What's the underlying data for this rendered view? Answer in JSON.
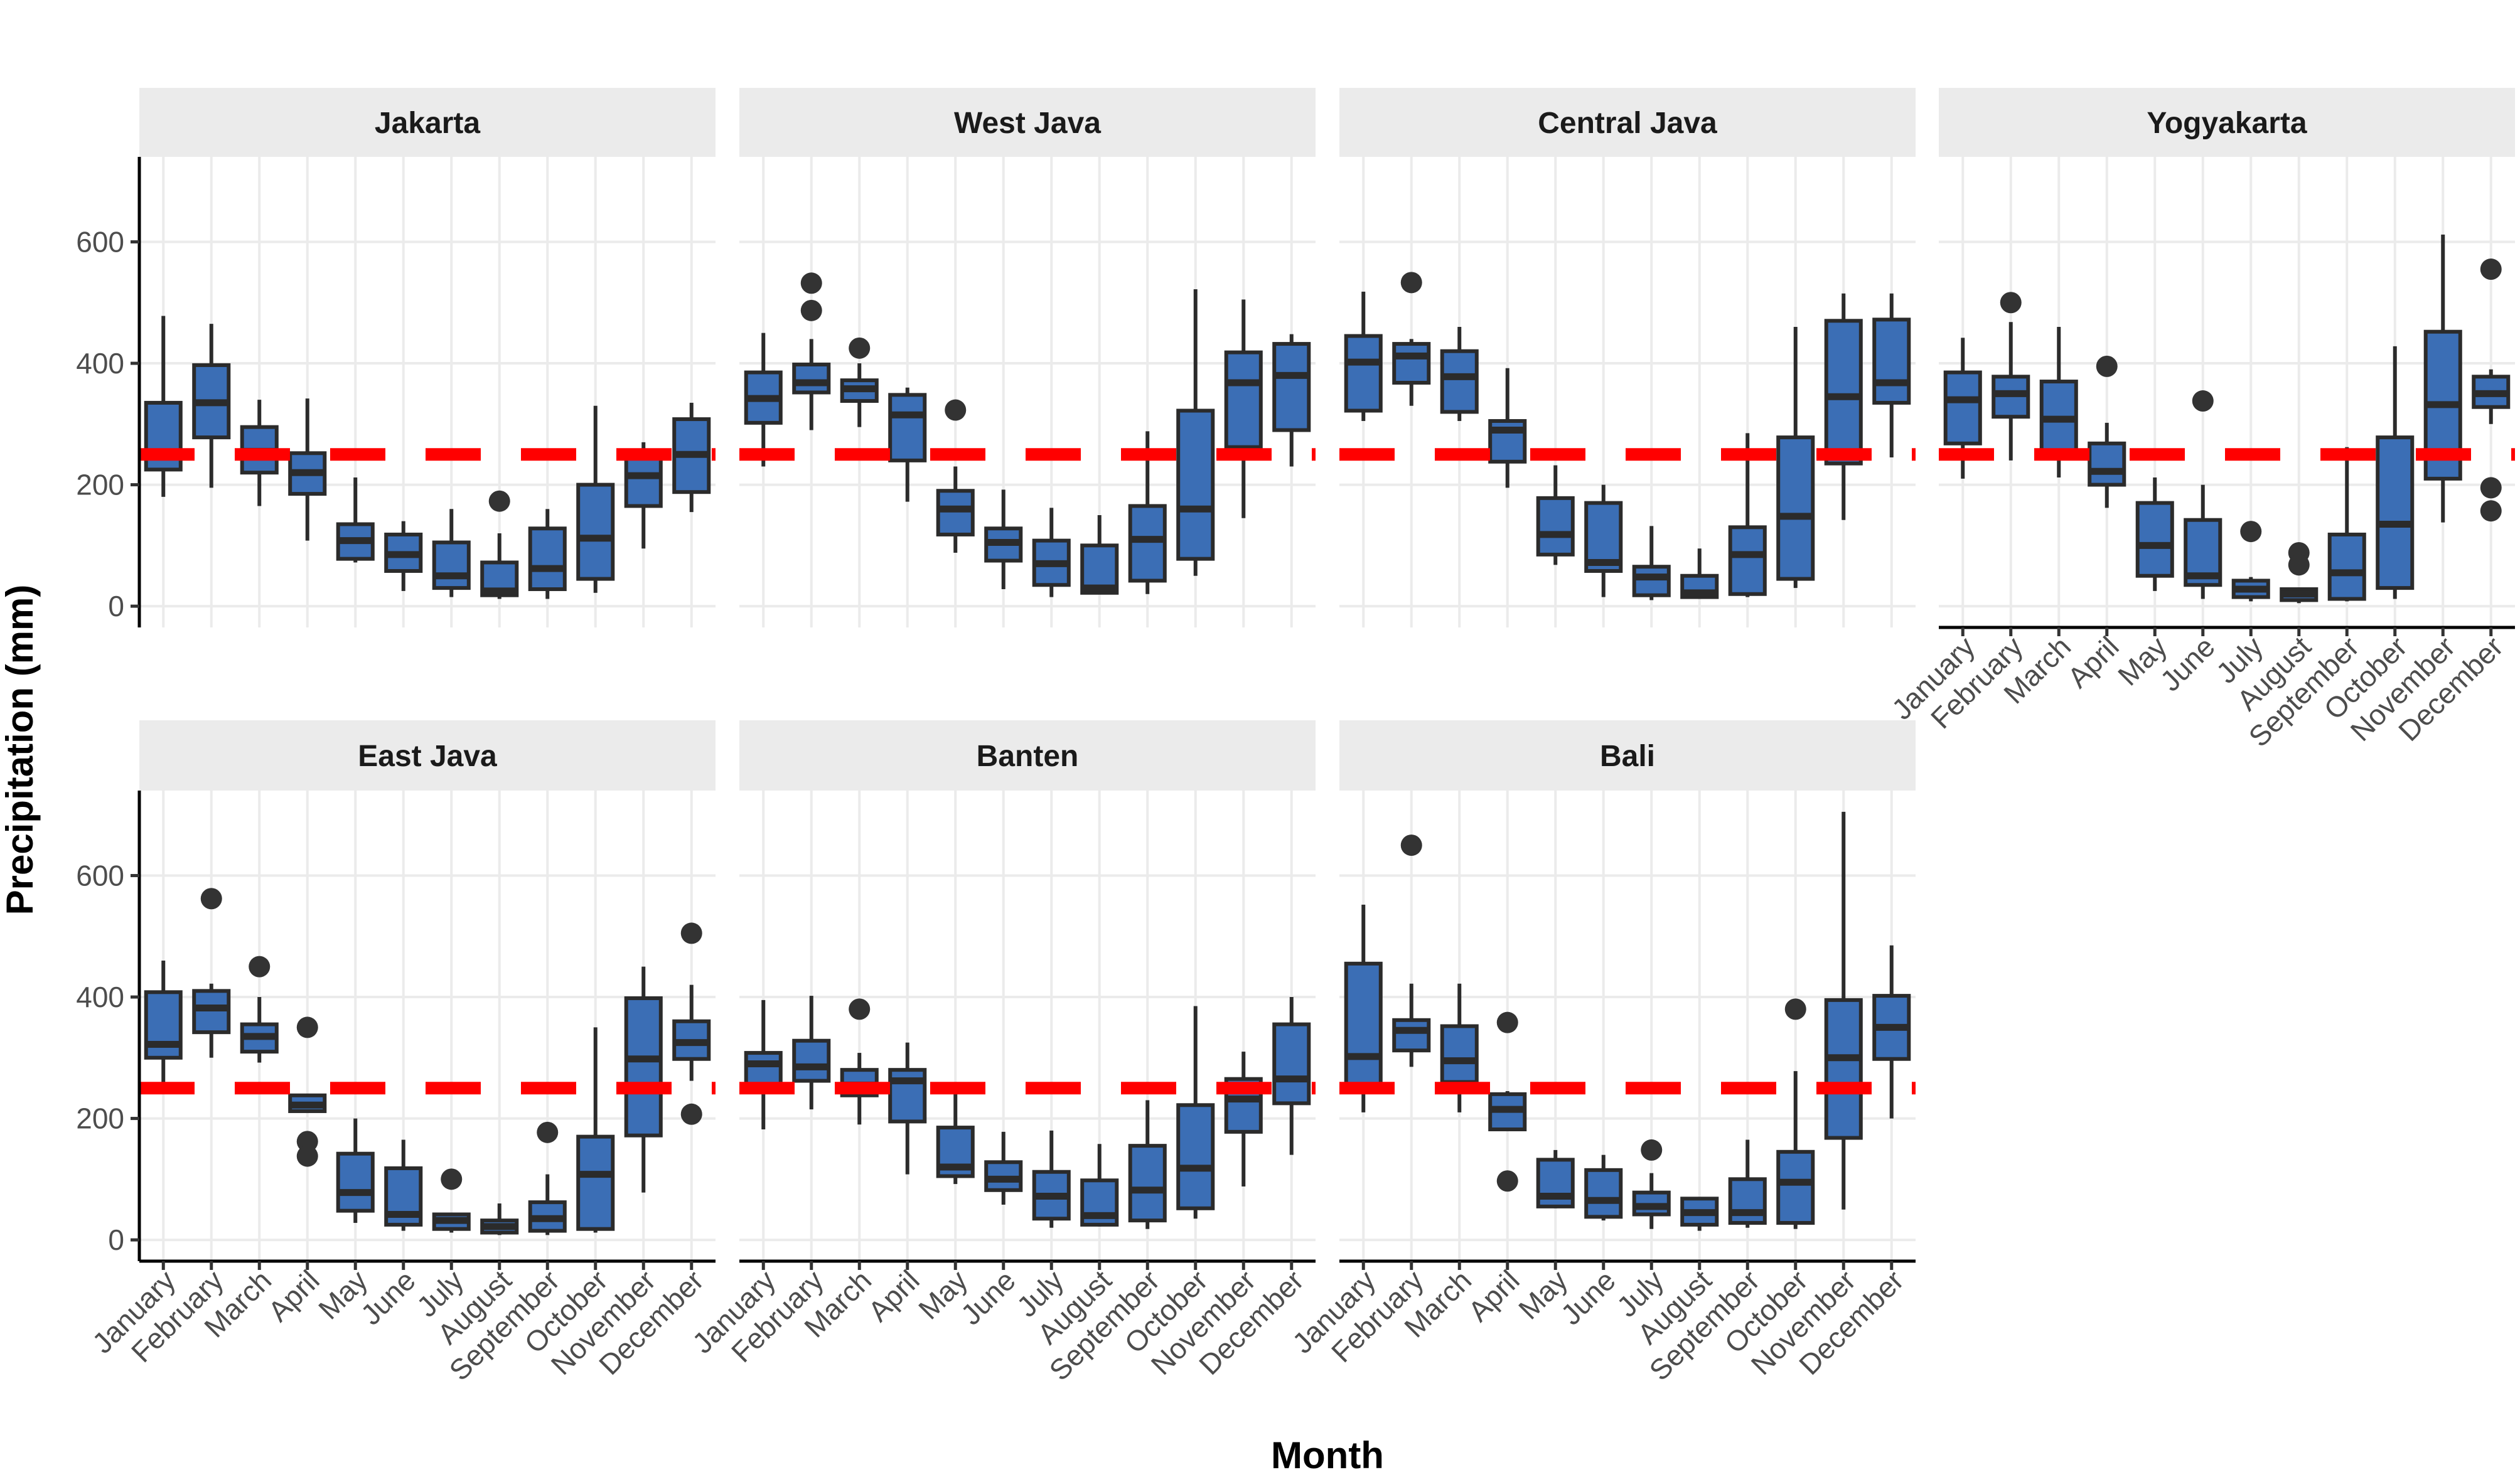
{
  "figure": {
    "xlabel": "Month",
    "ylabel": "Precipitation (mm)",
    "colors": {
      "box_fill": "#3B6EB5",
      "box_stroke": "#2b2b2b",
      "outlier": "#333333",
      "threshold_line": "#FF0000",
      "strip_background": "#EBEBEB",
      "grid": "#EBEBEB"
    }
  },
  "chart_data": {
    "type": "boxplot",
    "months": [
      "January",
      "February",
      "March",
      "April",
      "May",
      "June",
      "July",
      "August",
      "September",
      "October",
      "November",
      "December"
    ],
    "ylim": [
      -35,
      740
    ],
    "yticks": [
      0,
      200,
      400,
      600
    ],
    "threshold": 250,
    "grid": "on",
    "panels": [
      {
        "name": "Jakarta",
        "boxes": [
          {
            "lw": 180,
            "q1": 225,
            "med": 252,
            "q3": 335,
            "uw": 478,
            "out": []
          },
          {
            "lw": 195,
            "q1": 278,
            "med": 335,
            "q3": 397,
            "uw": 465,
            "out": []
          },
          {
            "lw": 165,
            "q1": 220,
            "med": 255,
            "q3": 295,
            "uw": 340,
            "out": []
          },
          {
            "lw": 108,
            "q1": 185,
            "med": 220,
            "q3": 252,
            "uw": 342,
            "out": []
          },
          {
            "lw": 72,
            "q1": 78,
            "med": 108,
            "q3": 135,
            "uw": 212,
            "out": []
          },
          {
            "lw": 25,
            "q1": 58,
            "med": 85,
            "q3": 118,
            "uw": 140,
            "out": []
          },
          {
            "lw": 15,
            "q1": 30,
            "med": 50,
            "q3": 105,
            "uw": 160,
            "out": []
          },
          {
            "lw": 12,
            "q1": 18,
            "med": 25,
            "q3": 72,
            "uw": 120,
            "out": [
              173
            ]
          },
          {
            "lw": 12,
            "q1": 28,
            "med": 62,
            "q3": 128,
            "uw": 160,
            "out": []
          },
          {
            "lw": 22,
            "q1": 45,
            "med": 112,
            "q3": 200,
            "uw": 330,
            "out": []
          },
          {
            "lw": 95,
            "q1": 165,
            "med": 215,
            "q3": 250,
            "uw": 270,
            "out": []
          },
          {
            "lw": 155,
            "q1": 188,
            "med": 250,
            "q3": 308,
            "uw": 335,
            "out": []
          }
        ]
      },
      {
        "name": "West Java",
        "boxes": [
          {
            "lw": 230,
            "q1": 302,
            "med": 342,
            "q3": 385,
            "uw": 450,
            "out": []
          },
          {
            "lw": 290,
            "q1": 352,
            "med": 368,
            "q3": 398,
            "uw": 440,
            "out": [
              532,
              487
            ]
          },
          {
            "lw": 295,
            "q1": 338,
            "med": 358,
            "q3": 372,
            "uw": 400,
            "out": [
              425
            ]
          },
          {
            "lw": 172,
            "q1": 240,
            "med": 315,
            "q3": 348,
            "uw": 360,
            "out": []
          },
          {
            "lw": 88,
            "q1": 118,
            "med": 160,
            "q3": 190,
            "uw": 230,
            "out": [
              323
            ]
          },
          {
            "lw": 28,
            "q1": 75,
            "med": 105,
            "q3": 128,
            "uw": 192,
            "out": []
          },
          {
            "lw": 15,
            "q1": 35,
            "med": 70,
            "q3": 108,
            "uw": 162,
            "out": []
          },
          {
            "lw": 20,
            "q1": 22,
            "med": 30,
            "q3": 100,
            "uw": 150,
            "out": []
          },
          {
            "lw": 20,
            "q1": 42,
            "med": 110,
            "q3": 165,
            "uw": 288,
            "out": []
          },
          {
            "lw": 50,
            "q1": 78,
            "med": 160,
            "q3": 322,
            "uw": 522,
            "out": []
          },
          {
            "lw": 145,
            "q1": 262,
            "med": 368,
            "q3": 418,
            "uw": 505,
            "out": []
          },
          {
            "lw": 230,
            "q1": 290,
            "med": 380,
            "q3": 432,
            "uw": 448,
            "out": []
          }
        ]
      },
      {
        "name": "Central Java",
        "boxes": [
          {
            "lw": 305,
            "q1": 322,
            "med": 402,
            "q3": 445,
            "uw": 518,
            "out": []
          },
          {
            "lw": 330,
            "q1": 368,
            "med": 412,
            "q3": 432,
            "uw": 440,
            "out": [
              533
            ]
          },
          {
            "lw": 305,
            "q1": 320,
            "med": 378,
            "q3": 420,
            "uw": 460,
            "out": []
          },
          {
            "lw": 195,
            "q1": 238,
            "med": 290,
            "q3": 305,
            "uw": 392,
            "out": []
          },
          {
            "lw": 68,
            "q1": 85,
            "med": 118,
            "q3": 178,
            "uw": 232,
            "out": []
          },
          {
            "lw": 15,
            "q1": 58,
            "med": 72,
            "q3": 170,
            "uw": 200,
            "out": []
          },
          {
            "lw": 10,
            "q1": 18,
            "med": 48,
            "q3": 65,
            "uw": 132,
            "out": []
          },
          {
            "lw": 12,
            "q1": 15,
            "med": 22,
            "q3": 50,
            "uw": 95,
            "out": []
          },
          {
            "lw": 15,
            "q1": 20,
            "med": 85,
            "q3": 130,
            "uw": 285,
            "out": []
          },
          {
            "lw": 30,
            "q1": 45,
            "med": 148,
            "q3": 278,
            "uw": 460,
            "out": []
          },
          {
            "lw": 142,
            "q1": 235,
            "med": 345,
            "q3": 470,
            "uw": 515,
            "out": []
          },
          {
            "lw": 245,
            "q1": 335,
            "med": 368,
            "q3": 472,
            "uw": 515,
            "out": []
          }
        ]
      },
      {
        "name": "Yogyakarta",
        "boxes": [
          {
            "lw": 210,
            "q1": 268,
            "med": 340,
            "q3": 385,
            "uw": 442,
            "out": []
          },
          {
            "lw": 240,
            "q1": 312,
            "med": 350,
            "q3": 378,
            "uw": 468,
            "out": [
              500
            ]
          },
          {
            "lw": 212,
            "q1": 248,
            "med": 308,
            "q3": 370,
            "uw": 460,
            "out": []
          },
          {
            "lw": 162,
            "q1": 200,
            "med": 222,
            "q3": 268,
            "uw": 302,
            "out": [
              395
            ]
          },
          {
            "lw": 25,
            "q1": 50,
            "med": 100,
            "q3": 170,
            "uw": 212,
            "out": []
          },
          {
            "lw": 12,
            "q1": 35,
            "med": 50,
            "q3": 142,
            "uw": 200,
            "out": [
              338
            ]
          },
          {
            "lw": 8,
            "q1": 15,
            "med": 28,
            "q3": 42,
            "uw": 48,
            "out": [
              123
            ]
          },
          {
            "lw": 5,
            "q1": 10,
            "med": 20,
            "q3": 28,
            "uw": 30,
            "out": [
              88,
              68
            ]
          },
          {
            "lw": 8,
            "q1": 12,
            "med": 55,
            "q3": 118,
            "uw": 262,
            "out": []
          },
          {
            "lw": 12,
            "q1": 30,
            "med": 135,
            "q3": 278,
            "uw": 428,
            "out": []
          },
          {
            "lw": 138,
            "q1": 210,
            "med": 332,
            "q3": 452,
            "uw": 612,
            "out": []
          },
          {
            "lw": 300,
            "q1": 328,
            "med": 350,
            "q3": 378,
            "uw": 390,
            "out": [
              555,
              195,
              157
            ]
          }
        ]
      },
      {
        "name": "East Java",
        "boxes": [
          {
            "lw": 260,
            "q1": 300,
            "med": 322,
            "q3": 408,
            "uw": 460,
            "out": []
          },
          {
            "lw": 300,
            "q1": 342,
            "med": 382,
            "q3": 410,
            "uw": 422,
            "out": [
              562
            ]
          },
          {
            "lw": 292,
            "q1": 310,
            "med": 335,
            "q3": 355,
            "uw": 400,
            "out": [
              450
            ]
          },
          {
            "lw": 210,
            "q1": 212,
            "med": 222,
            "q3": 238,
            "uw": 240,
            "out": [
              350,
              162,
              138
            ]
          },
          {
            "lw": 28,
            "q1": 48,
            "med": 78,
            "q3": 142,
            "uw": 200,
            "out": []
          },
          {
            "lw": 15,
            "q1": 25,
            "med": 42,
            "q3": 118,
            "uw": 165,
            "out": []
          },
          {
            "lw": 12,
            "q1": 18,
            "med": 32,
            "q3": 42,
            "uw": 45,
            "out": [
              100
            ]
          },
          {
            "lw": 8,
            "q1": 12,
            "med": 22,
            "q3": 32,
            "uw": 60,
            "out": []
          },
          {
            "lw": 8,
            "q1": 15,
            "med": 35,
            "q3": 62,
            "uw": 108,
            "out": [
              177
            ]
          },
          {
            "lw": 12,
            "q1": 18,
            "med": 108,
            "q3": 170,
            "uw": 350,
            "out": []
          },
          {
            "lw": 78,
            "q1": 172,
            "med": 298,
            "q3": 398,
            "uw": 450,
            "out": []
          },
          {
            "lw": 262,
            "q1": 298,
            "med": 325,
            "q3": 360,
            "uw": 420,
            "out": [
              505,
              207
            ]
          }
        ]
      },
      {
        "name": "Banten",
        "boxes": [
          {
            "lw": 182,
            "q1": 250,
            "med": 290,
            "q3": 308,
            "uw": 395,
            "out": []
          },
          {
            "lw": 215,
            "q1": 262,
            "med": 285,
            "q3": 328,
            "uw": 402,
            "out": []
          },
          {
            "lw": 190,
            "q1": 238,
            "med": 255,
            "q3": 280,
            "uw": 308,
            "out": [
              380
            ]
          },
          {
            "lw": 108,
            "q1": 195,
            "med": 262,
            "q3": 280,
            "uw": 325,
            "out": []
          },
          {
            "lw": 92,
            "q1": 105,
            "med": 120,
            "q3": 185,
            "uw": 240,
            "out": []
          },
          {
            "lw": 58,
            "q1": 82,
            "med": 100,
            "q3": 128,
            "uw": 178,
            "out": []
          },
          {
            "lw": 20,
            "q1": 35,
            "med": 72,
            "q3": 112,
            "uw": 180,
            "out": []
          },
          {
            "lw": 22,
            "q1": 25,
            "med": 40,
            "q3": 98,
            "uw": 158,
            "out": []
          },
          {
            "lw": 18,
            "q1": 32,
            "med": 82,
            "q3": 155,
            "uw": 230,
            "out": []
          },
          {
            "lw": 35,
            "q1": 52,
            "med": 118,
            "q3": 222,
            "uw": 385,
            "out": []
          },
          {
            "lw": 88,
            "q1": 178,
            "med": 232,
            "q3": 265,
            "uw": 310,
            "out": []
          },
          {
            "lw": 140,
            "q1": 225,
            "med": 265,
            "q3": 355,
            "uw": 400,
            "out": []
          }
        ]
      },
      {
        "name": "Bali",
        "boxes": [
          {
            "lw": 210,
            "q1": 255,
            "med": 302,
            "q3": 455,
            "uw": 552,
            "out": []
          },
          {
            "lw": 285,
            "q1": 312,
            "med": 345,
            "q3": 362,
            "uw": 422,
            "out": [
              650
            ]
          },
          {
            "lw": 210,
            "q1": 260,
            "med": 295,
            "q3": 352,
            "uw": 422,
            "out": []
          },
          {
            "lw": 180,
            "q1": 182,
            "med": 215,
            "q3": 240,
            "uw": 245,
            "out": [
              358,
              97
            ]
          },
          {
            "lw": 52,
            "q1": 55,
            "med": 72,
            "q3": 132,
            "uw": 148,
            "out": []
          },
          {
            "lw": 32,
            "q1": 38,
            "med": 65,
            "q3": 115,
            "uw": 140,
            "out": []
          },
          {
            "lw": 18,
            "q1": 42,
            "med": 55,
            "q3": 78,
            "uw": 110,
            "out": [
              148
            ]
          },
          {
            "lw": 15,
            "q1": 25,
            "med": 45,
            "q3": 68,
            "uw": 70,
            "out": []
          },
          {
            "lw": 20,
            "q1": 28,
            "med": 45,
            "q3": 100,
            "uw": 165,
            "out": []
          },
          {
            "lw": 18,
            "q1": 28,
            "med": 95,
            "q3": 145,
            "uw": 278,
            "out": [
              380
            ]
          },
          {
            "lw": 50,
            "q1": 168,
            "med": 300,
            "q3": 395,
            "uw": 705,
            "out": []
          },
          {
            "lw": 200,
            "q1": 298,
            "med": 350,
            "q3": 402,
            "uw": 485,
            "out": []
          }
        ]
      }
    ]
  }
}
